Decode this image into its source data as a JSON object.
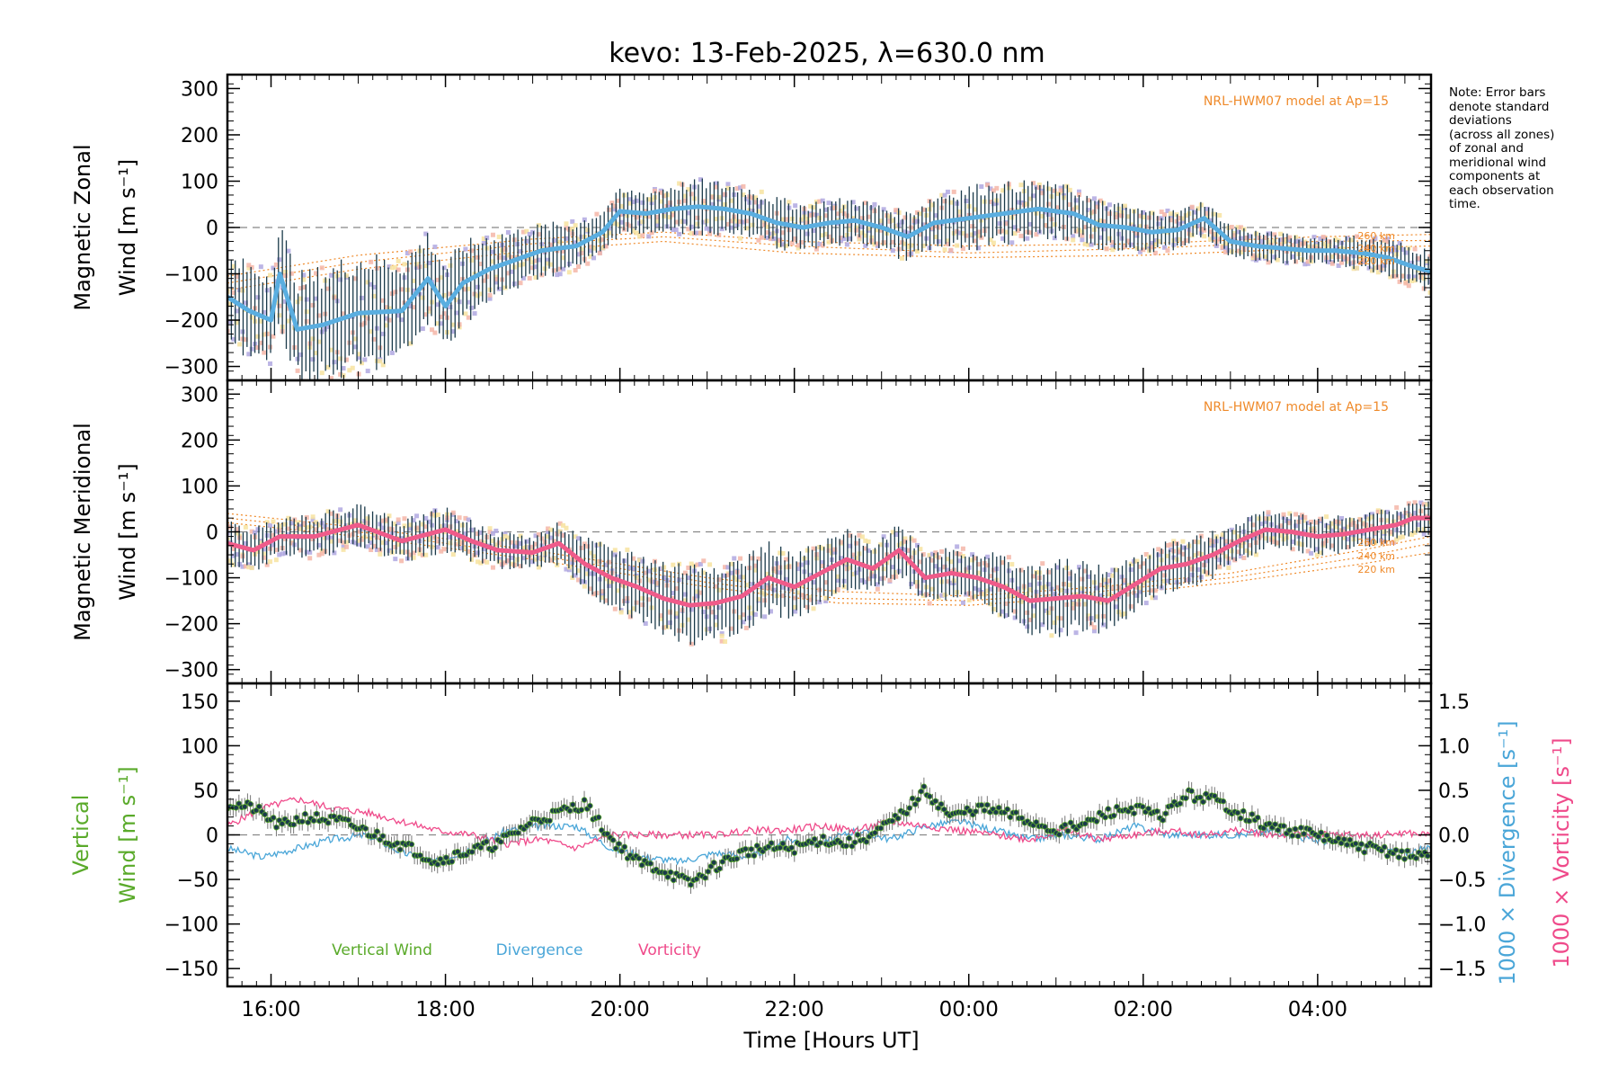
{
  "title": "kevo: 13-Feb-2025, λ=630.0 nm",
  "xlabel": "Time [Hours UT]",
  "x_tick_labels": [
    "16:00",
    "18:00",
    "20:00",
    "22:00",
    "00:00",
    "02:00",
    "04:00"
  ],
  "note_lines": [
    "Note: Error bars",
    "denote standard",
    "deviations",
    "(across all zones)",
    "of zonal and",
    "meridional wind",
    "components at",
    "each observation",
    "time."
  ],
  "colors": {
    "zonal_line": "#5aaee0",
    "meridional_line": "#ef5b8a",
    "model": "#ef8a2a",
    "lavender": "#b0a8e0",
    "yellow": "#f7e3a0",
    "pink_scatter": "#f5b6a8",
    "error_bar": "#1a3a4a",
    "vertical": "#5aaa2a",
    "divergence": "#4aa6d8",
    "vorticity": "#ef4a8a",
    "zero_line": "#888888"
  },
  "chart_data": [
    {
      "panel": "zonal",
      "type": "line",
      "ylabel_line1": "Magnetic Zonal",
      "ylabel_line2": "Wind [m s⁻¹]",
      "ylim": [
        -330,
        330
      ],
      "yticks": [
        -300,
        -200,
        -100,
        0,
        100,
        200,
        300
      ],
      "y_tick_labels": [
        "−300",
        "−200",
        "−100",
        "0",
        "100",
        "200",
        "300"
      ],
      "xlim": [
        15.5,
        29.3
      ],
      "model_label": "NRL-HWM07 model at Ap=15",
      "model_alt_labels": [
        "260 km",
        "240 km",
        "220 km"
      ],
      "series": [
        {
          "name": "zonal wind",
          "x": [
            15.5,
            15.75,
            16.0,
            16.1,
            16.3,
            16.6,
            17.0,
            17.5,
            17.8,
            18.0,
            18.2,
            18.5,
            18.8,
            19.1,
            19.5,
            19.8,
            20.0,
            20.3,
            20.6,
            20.9,
            21.2,
            21.5,
            21.8,
            22.1,
            22.4,
            22.7,
            23.0,
            23.3,
            23.6,
            24.0,
            24.4,
            24.8,
            25.2,
            25.5,
            25.8,
            26.1,
            26.4,
            26.7,
            27.0,
            27.3,
            27.6,
            27.9,
            28.2,
            28.5,
            28.8,
            29.1,
            29.3
          ],
          "y": [
            -150,
            -180,
            -200,
            -100,
            -220,
            -210,
            -185,
            -180,
            -110,
            -170,
            -120,
            -90,
            -70,
            -50,
            -40,
            -10,
            35,
            30,
            40,
            45,
            40,
            30,
            10,
            0,
            10,
            15,
            0,
            -20,
            10,
            20,
            30,
            40,
            30,
            5,
            0,
            -10,
            -5,
            20,
            -30,
            -40,
            -45,
            -50,
            -50,
            -55,
            -65,
            -85,
            -95
          ]
        }
      ],
      "error_halfwidth": {
        "x": [
          15.5,
          16.2,
          17.0,
          18.0,
          19.0,
          20.0,
          21.0,
          22.0,
          23.0,
          24.0,
          25.0,
          26.0,
          27.0,
          28.0,
          29.3
        ],
        "y": [
          80,
          100,
          110,
          80,
          50,
          40,
          50,
          45,
          40,
          60,
          50,
          40,
          30,
          25,
          40
        ]
      },
      "model_curves": [
        {
          "name": "260 km",
          "x": [
            15.5,
            17.0,
            19.0,
            20.5,
            22.0,
            24.0,
            26.0,
            28.0,
            29.3
          ],
          "y": [
            -105,
            -60,
            -25,
            -10,
            -30,
            -40,
            -35,
            -20,
            -15
          ]
        },
        {
          "name": "240 km",
          "x": [
            15.5,
            17.0,
            19.0,
            20.5,
            22.0,
            24.0,
            26.0,
            28.0,
            29.3
          ],
          "y": [
            -120,
            -75,
            -35,
            -20,
            -40,
            -55,
            -45,
            -30,
            -28
          ]
        },
        {
          "name": "220 km",
          "x": [
            15.5,
            17.0,
            19.0,
            20.5,
            22.0,
            24.0,
            26.0,
            28.0,
            29.3
          ],
          "y": [
            -135,
            -90,
            -50,
            -30,
            -55,
            -65,
            -60,
            -45,
            -40
          ]
        }
      ]
    },
    {
      "panel": "meridional",
      "type": "line",
      "ylabel_line1": "Magnetic Meridional",
      "ylabel_line2": "Wind [m s⁻¹]",
      "ylim": [
        -330,
        330
      ],
      "yticks": [
        -300,
        -200,
        -100,
        0,
        100,
        200,
        300
      ],
      "y_tick_labels": [
        "−300",
        "−200",
        "−100",
        "0",
        "100",
        "200",
        "300"
      ],
      "xlim": [
        15.5,
        29.3
      ],
      "model_label": "NRL-HWM07 model at Ap=15",
      "model_alt_labels": [
        "260 km",
        "240 km",
        "220 km"
      ],
      "series": [
        {
          "name": "meridional wind",
          "x": [
            15.5,
            15.8,
            16.1,
            16.5,
            17.0,
            17.5,
            18.0,
            18.3,
            18.6,
            19.0,
            19.3,
            19.6,
            19.9,
            20.2,
            20.5,
            20.8,
            21.1,
            21.4,
            21.7,
            22.0,
            22.3,
            22.6,
            22.9,
            23.2,
            23.5,
            23.8,
            24.1,
            24.4,
            24.7,
            25.0,
            25.3,
            25.6,
            25.9,
            26.2,
            26.5,
            26.8,
            27.1,
            27.4,
            27.7,
            28.0,
            28.3,
            28.6,
            28.9,
            29.1,
            29.3
          ],
          "y": [
            -25,
            -40,
            -10,
            -10,
            15,
            -20,
            5,
            -20,
            -40,
            -45,
            -25,
            -70,
            -100,
            -120,
            -145,
            -160,
            -155,
            -140,
            -100,
            -120,
            -90,
            -60,
            -80,
            -40,
            -100,
            -90,
            -100,
            -120,
            -150,
            -145,
            -140,
            -150,
            -115,
            -80,
            -70,
            -50,
            -20,
            5,
            0,
            -10,
            -5,
            5,
            15,
            30,
            30
          ]
        }
      ],
      "error_halfwidth": {
        "x": [
          15.5,
          17.0,
          18.0,
          19.0,
          20.0,
          21.0,
          22.0,
          23.0,
          24.0,
          25.0,
          26.0,
          27.0,
          28.0,
          29.3
        ],
        "y": [
          40,
          40,
          40,
          30,
          60,
          80,
          60,
          50,
          50,
          70,
          50,
          40,
          35,
          30
        ]
      },
      "model_curves": [
        {
          "name": "260 km",
          "x": [
            15.5,
            17.0,
            19.0,
            21.0,
            22.5,
            24.0,
            25.5,
            27.0,
            28.5,
            29.3
          ],
          "y": [
            40,
            10,
            -40,
            -100,
            -130,
            -140,
            -120,
            -90,
            -40,
            -10
          ]
        },
        {
          "name": "240 km",
          "x": [
            15.5,
            17.0,
            19.0,
            21.0,
            22.5,
            24.0,
            25.5,
            27.0,
            28.5,
            29.3
          ],
          "y": [
            30,
            0,
            -50,
            -110,
            -145,
            -150,
            -130,
            -100,
            -55,
            -25
          ]
        },
        {
          "name": "220 km",
          "x": [
            15.5,
            17.0,
            19.0,
            21.0,
            22.5,
            24.0,
            25.5,
            27.0,
            28.5,
            29.3
          ],
          "y": [
            20,
            -10,
            -60,
            -120,
            -155,
            -160,
            -140,
            -110,
            -70,
            -45
          ]
        }
      ]
    },
    {
      "panel": "vertical",
      "type": "line",
      "ylabel_line1": "Vertical",
      "ylabel_line2": "Wind [m s⁻¹]",
      "right_label_divergence": "1000 × Divergence [s⁻¹]",
      "right_label_vorticity": "1000 × Vorticity [s⁻¹]",
      "ylim": [
        -170,
        170
      ],
      "yticks": [
        -150,
        -100,
        -50,
        0,
        50,
        100,
        150
      ],
      "y_tick_labels": [
        "−150",
        "−100",
        "−50",
        "0",
        "50",
        "100",
        "150"
      ],
      "y2lim": [
        -1.7,
        1.7
      ],
      "y2ticks": [
        -1.5,
        -1.0,
        -0.5,
        0.0,
        0.5,
        1.0,
        1.5
      ],
      "y2_tick_labels": [
        "−1.5",
        "−1.0",
        "−0.5",
        "0.0",
        "0.5",
        "1.0",
        "1.5"
      ],
      "xlim": [
        15.5,
        29.3
      ],
      "legend": [
        "Vertical Wind",
        "Divergence",
        "Vorticity"
      ],
      "series": [
        {
          "name": "Vertical Wind",
          "x": [
            15.5,
            15.8,
            16.1,
            16.4,
            16.8,
            17.2,
            17.6,
            17.9,
            18.2,
            18.6,
            19.0,
            19.3,
            19.6,
            19.9,
            20.2,
            20.5,
            20.8,
            21.1,
            21.4,
            21.7,
            22.0,
            22.3,
            22.6,
            22.9,
            23.2,
            23.5,
            23.8,
            24.1,
            24.4,
            24.7,
            25.0,
            25.3,
            25.6,
            25.9,
            26.2,
            26.5,
            26.8,
            27.1,
            27.4,
            27.7,
            28.0,
            28.3,
            28.6,
            28.9,
            29.1,
            29.3
          ],
          "y": [
            35,
            30,
            10,
            20,
            15,
            0,
            -15,
            -30,
            -20,
            -10,
            15,
            25,
            35,
            -5,
            -30,
            -40,
            -55,
            -35,
            -20,
            -15,
            -15,
            -5,
            -10,
            0,
            20,
            50,
            20,
            30,
            25,
            15,
            5,
            10,
            25,
            30,
            20,
            45,
            40,
            25,
            10,
            5,
            0,
            -10,
            -15,
            -20,
            -25,
            -20
          ]
        },
        {
          "name": "Divergence",
          "axis": "right",
          "x": [
            15.5,
            15.9,
            16.3,
            16.7,
            17.1,
            17.5,
            17.9,
            18.3,
            18.7,
            19.1,
            19.5,
            19.9,
            20.3,
            20.7,
            21.1,
            21.5,
            21.9,
            22.3,
            22.7,
            23.1,
            23.5,
            23.9,
            24.3,
            24.7,
            25.1,
            25.5,
            25.9,
            26.3,
            26.7,
            27.1,
            27.5,
            27.9,
            28.3,
            28.7,
            29.0,
            29.3
          ],
          "y": [
            -0.15,
            -0.25,
            -0.15,
            -0.05,
            0.0,
            -0.2,
            -0.3,
            -0.15,
            0.05,
            0.1,
            0.1,
            -0.15,
            -0.25,
            -0.3,
            -0.2,
            -0.25,
            -0.05,
            -0.1,
            0.05,
            -0.05,
            0.1,
            0.15,
            0.05,
            -0.05,
            0.0,
            -0.05,
            0.1,
            0.0,
            0.0,
            0.0,
            0.05,
            -0.05,
            -0.1,
            -0.15,
            -0.2,
            -0.15
          ]
        },
        {
          "name": "Vorticity",
          "axis": "right",
          "x": [
            15.5,
            15.9,
            16.3,
            16.7,
            17.1,
            17.5,
            17.9,
            18.3,
            18.7,
            19.1,
            19.5,
            19.9,
            20.3,
            20.7,
            21.1,
            21.5,
            21.9,
            22.3,
            22.7,
            23.1,
            23.5,
            23.9,
            24.3,
            24.7,
            25.1,
            25.5,
            25.9,
            26.3,
            26.7,
            27.1,
            27.5,
            27.9,
            28.3,
            28.7,
            29.0,
            29.3
          ],
          "y": [
            0.1,
            0.3,
            0.4,
            0.3,
            0.25,
            0.15,
            0.05,
            0.0,
            -0.1,
            -0.05,
            -0.15,
            0.0,
            0.0,
            0.0,
            0.0,
            0.05,
            0.05,
            0.1,
            0.05,
            0.15,
            0.1,
            0.05,
            0.0,
            -0.05,
            0.05,
            -0.05,
            0.0,
            0.05,
            0.0,
            0.05,
            0.0,
            0.0,
            0.0,
            0.0,
            0.02,
            0.0
          ]
        }
      ]
    }
  ]
}
